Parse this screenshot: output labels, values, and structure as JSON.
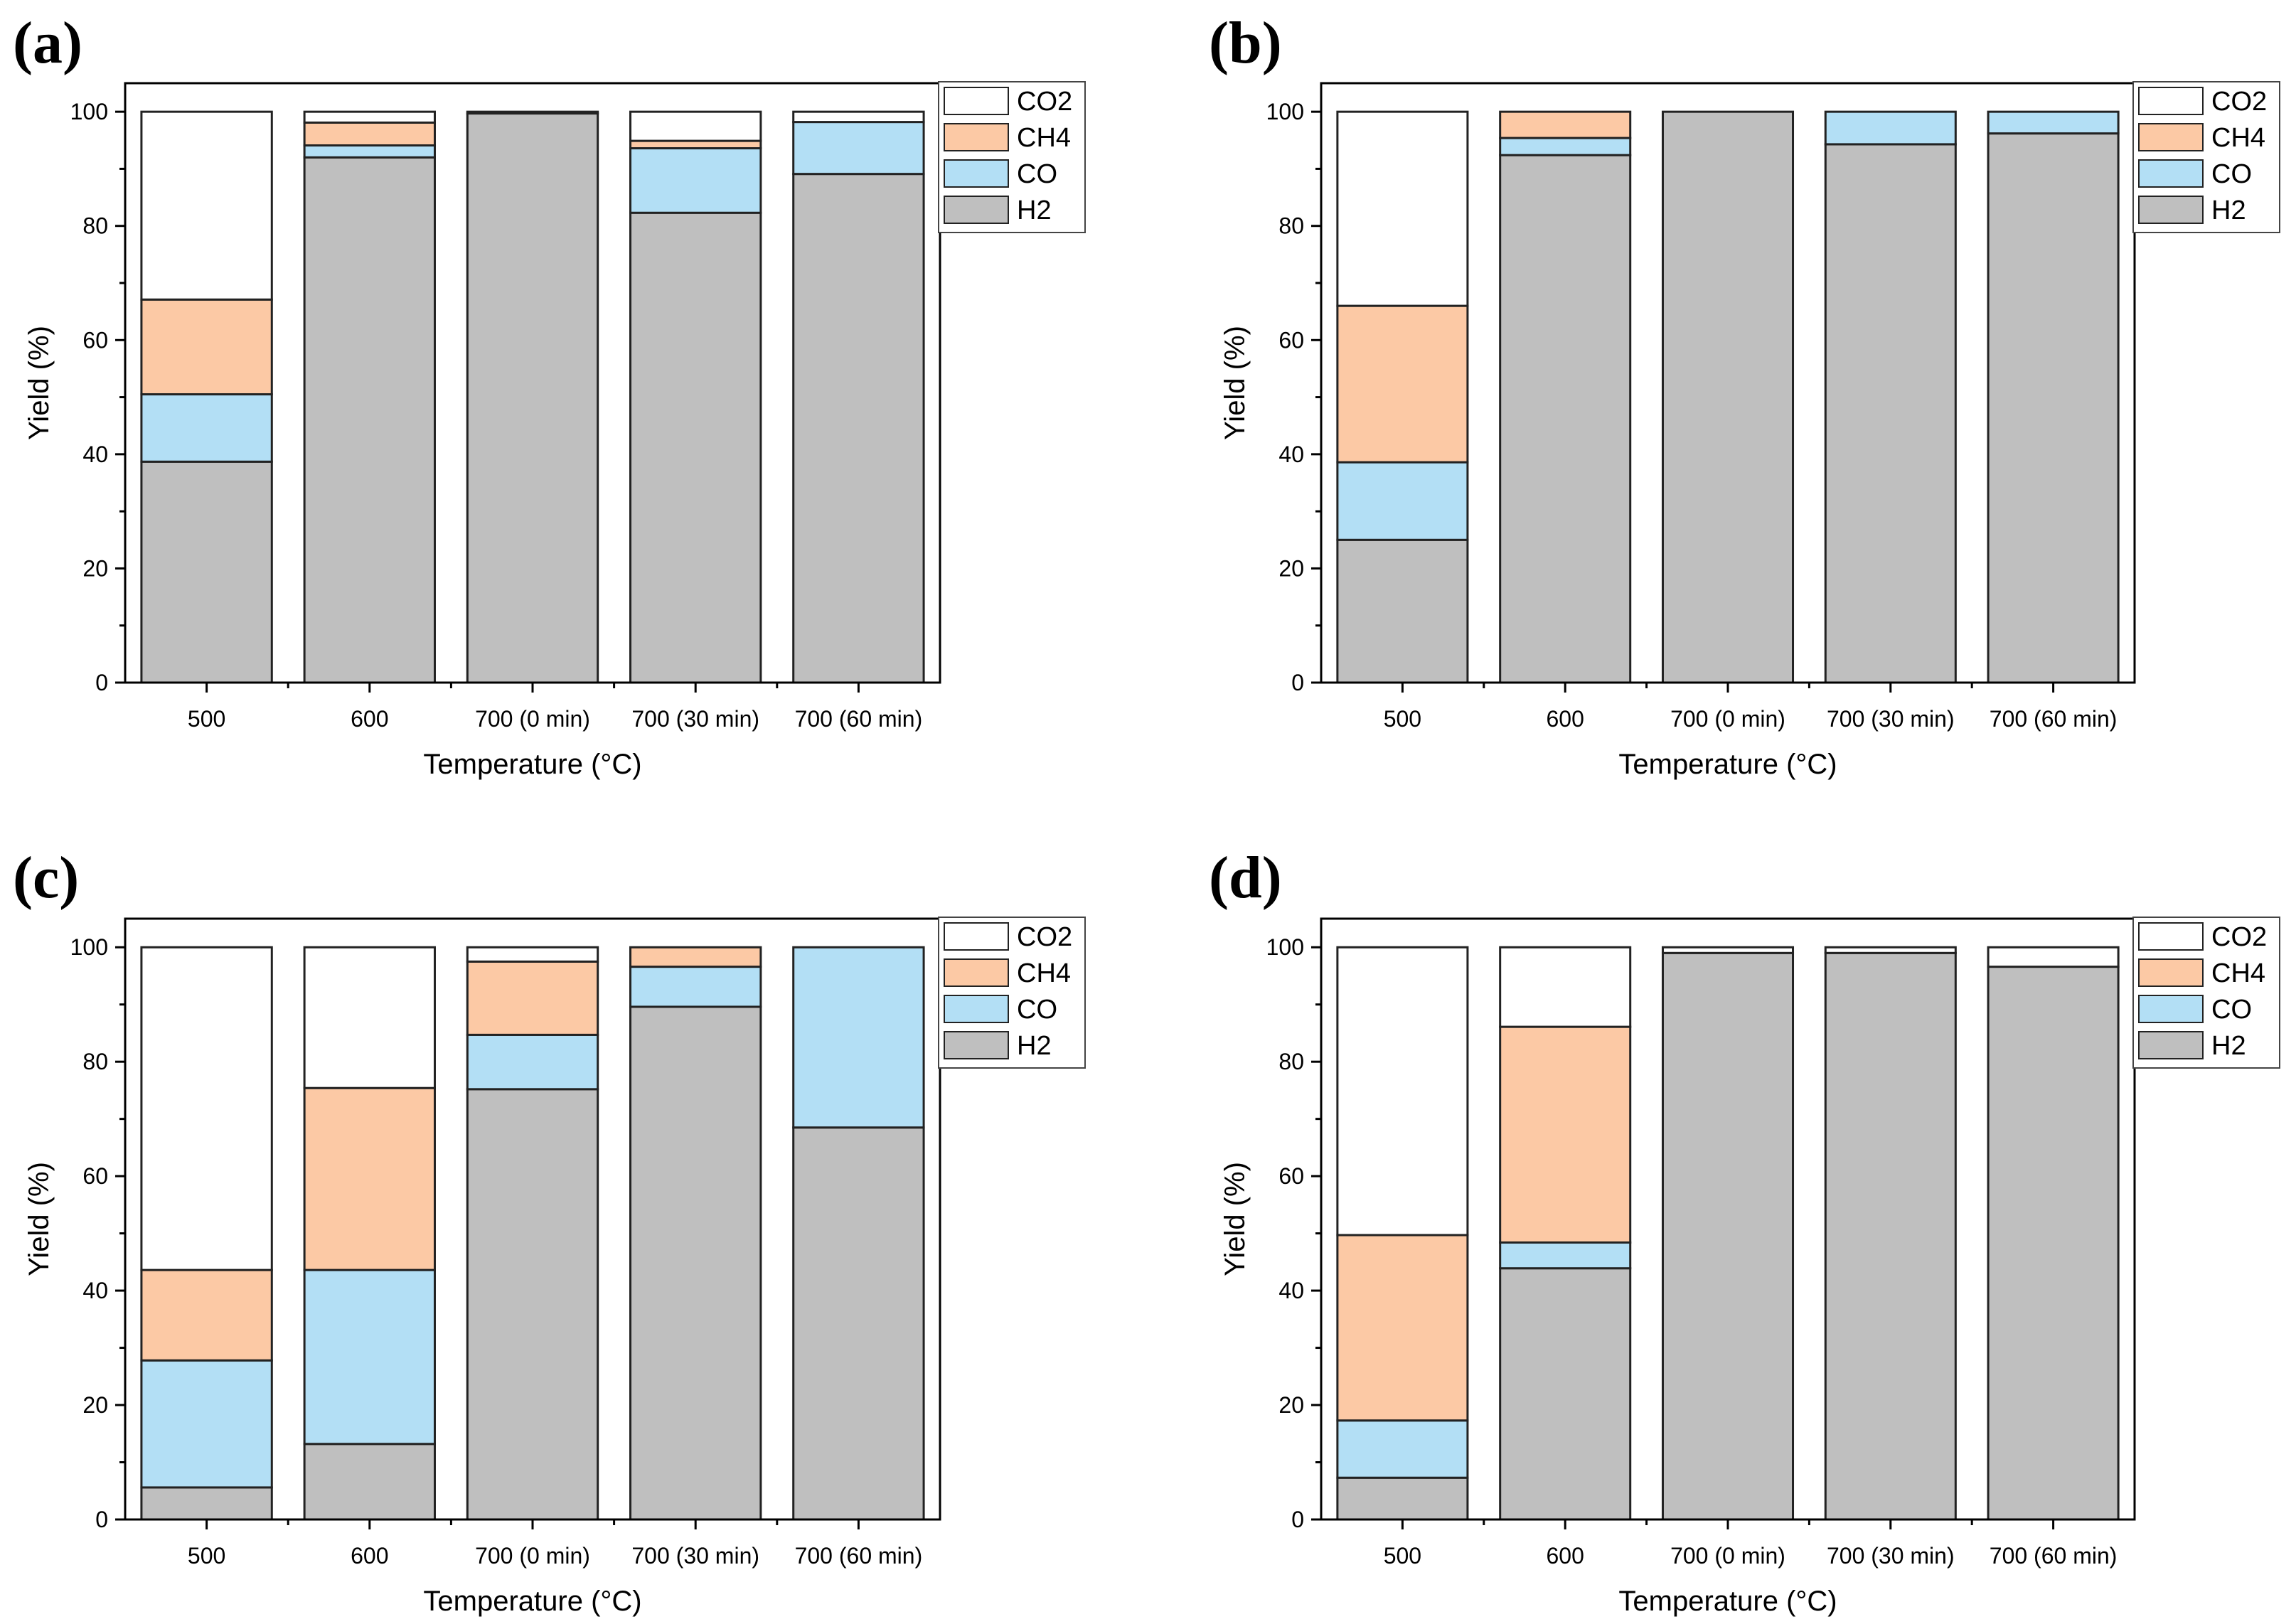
{
  "chart_data": [
    {
      "type": "bar",
      "stacked": true,
      "panel_label": "(a)",
      "xlabel": "Temperature (°C)",
      "ylabel": "Yield (%)",
      "ylim": [
        0,
        105
      ],
      "yticks": [
        0,
        20,
        40,
        60,
        80,
        100
      ],
      "categories": [
        "500",
        "600",
        "700 (0 min)",
        "700 (30 min)",
        "700 (60 min)"
      ],
      "legend_position": "top-right",
      "series": [
        {
          "name": "H2",
          "color": "#bfbfbf",
          "values": [
            38.7,
            92.0,
            99.7,
            82.3,
            89.1
          ]
        },
        {
          "name": "CO",
          "color": "#b3dff5",
          "values": [
            11.8,
            2.1,
            0.0,
            11.3,
            9.1
          ]
        },
        {
          "name": "CH4",
          "color": "#fcc9a5",
          "values": [
            16.6,
            4.0,
            0.0,
            1.3,
            0.0
          ]
        },
        {
          "name": "CO2",
          "color": "#ffffff",
          "values": [
            32.9,
            1.9,
            0.3,
            5.1,
            1.8
          ]
        }
      ]
    },
    {
      "type": "bar",
      "stacked": true,
      "panel_label": "(b)",
      "xlabel": "Temperature (°C)",
      "ylabel": "Yield (%)",
      "ylim": [
        0,
        105
      ],
      "yticks": [
        0,
        20,
        40,
        60,
        80,
        100
      ],
      "categories": [
        "500",
        "600",
        "700 (0 min)",
        "700 (30 min)",
        "700 (60 min)"
      ],
      "legend_position": "top-right",
      "series": [
        {
          "name": "H2",
          "color": "#bfbfbf",
          "values": [
            25.0,
            92.4,
            100.0,
            94.3,
            96.2
          ]
        },
        {
          "name": "CO",
          "color": "#b3dff5",
          "values": [
            13.6,
            3.0,
            0.0,
            5.7,
            3.8
          ]
        },
        {
          "name": "CH4",
          "color": "#fcc9a5",
          "values": [
            27.4,
            4.6,
            0.0,
            0.0,
            0.0
          ]
        },
        {
          "name": "CO2",
          "color": "#ffffff",
          "values": [
            34.0,
            0.0,
            0.0,
            0.0,
            0.0
          ]
        }
      ]
    },
    {
      "type": "bar",
      "stacked": true,
      "panel_label": "(c)",
      "xlabel": "Temperature (°C)",
      "ylabel": "Yield (%)",
      "ylim": [
        0,
        105
      ],
      "yticks": [
        0,
        20,
        40,
        60,
        80,
        100
      ],
      "categories": [
        "500",
        "600",
        "700 (0 min)",
        "700 (30 min)",
        "700 (60 min)"
      ],
      "legend_position": "top-right",
      "series": [
        {
          "name": "H2",
          "color": "#bfbfbf",
          "values": [
            5.6,
            13.2,
            75.2,
            89.6,
            68.5
          ]
        },
        {
          "name": "CO",
          "color": "#b3dff5",
          "values": [
            22.2,
            30.4,
            9.5,
            7.0,
            31.5
          ]
        },
        {
          "name": "CH4",
          "color": "#fcc9a5",
          "values": [
            15.8,
            31.8,
            12.8,
            3.4,
            0.0
          ]
        },
        {
          "name": "CO2",
          "color": "#ffffff",
          "values": [
            56.4,
            24.6,
            2.5,
            0.0,
            0.0
          ]
        }
      ]
    },
    {
      "type": "bar",
      "stacked": true,
      "panel_label": "(d)",
      "xlabel": "Temperature (°C)",
      "ylabel": "Yield (%)",
      "ylim": [
        0,
        105
      ],
      "yticks": [
        0,
        20,
        40,
        60,
        80,
        100
      ],
      "categories": [
        "500",
        "600",
        "700 (0 min)",
        "700 (30 min)",
        "700 (60 min)"
      ],
      "legend_position": "top-right",
      "series": [
        {
          "name": "H2",
          "color": "#bfbfbf",
          "values": [
            7.3,
            43.9,
            99.0,
            99.0,
            96.6
          ]
        },
        {
          "name": "CO",
          "color": "#b3dff5",
          "values": [
            10.0,
            4.5,
            0.0,
            0.0,
            0.0
          ]
        },
        {
          "name": "CH4",
          "color": "#fcc9a5",
          "values": [
            32.4,
            37.7,
            0.0,
            0.0,
            0.0
          ]
        },
        {
          "name": "CO2",
          "color": "#ffffff",
          "values": [
            50.3,
            13.9,
            1.0,
            1.0,
            3.4
          ]
        }
      ]
    }
  ]
}
